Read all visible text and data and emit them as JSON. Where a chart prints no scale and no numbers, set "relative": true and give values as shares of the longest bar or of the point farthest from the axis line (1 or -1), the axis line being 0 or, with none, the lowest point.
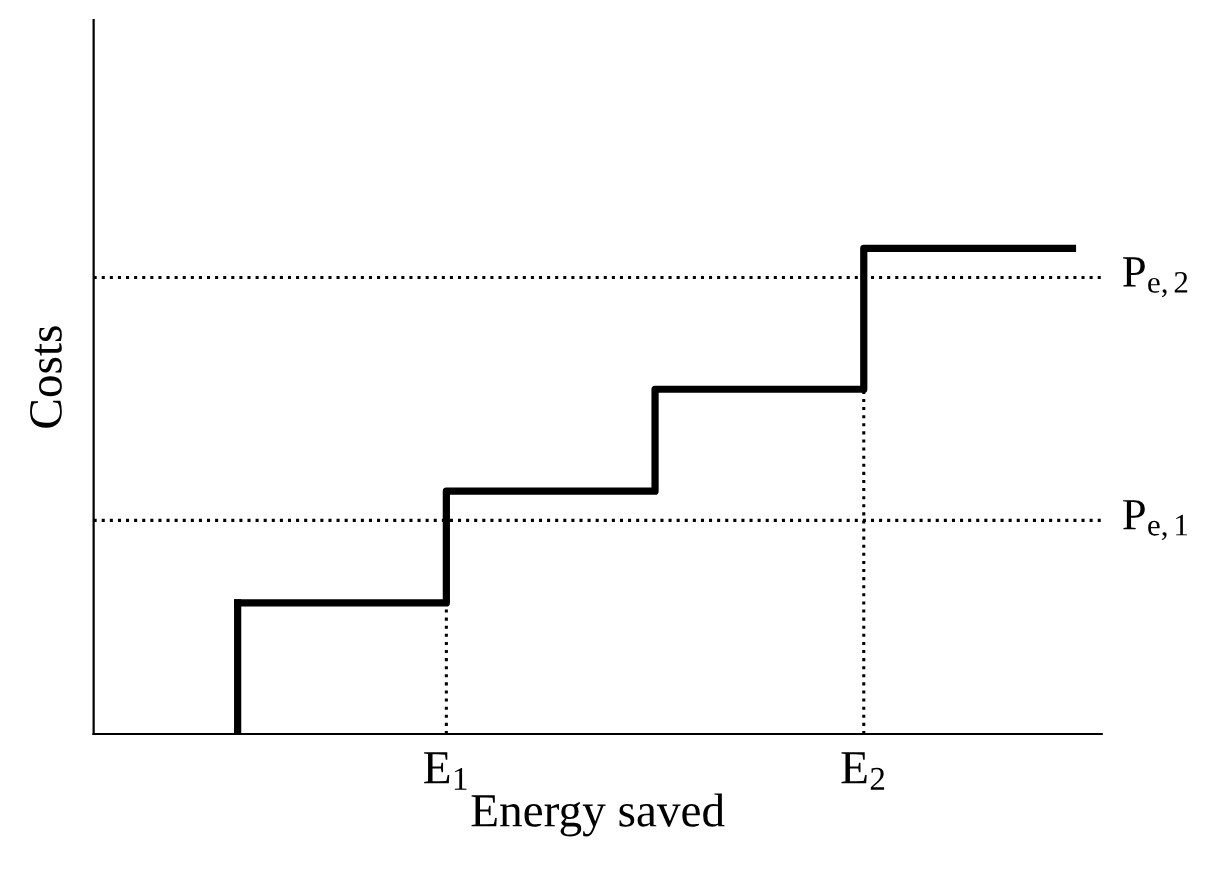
{
  "chart_data": {
    "type": "step",
    "relative": true,
    "xlabel": "Energy saved",
    "ylabel": "Costs",
    "categories": [
      null,
      "E$_{1}$",
      null,
      "E$_{2}$",
      null
    ],
    "series": [
      {
        "color": "#000000",
        "values": [
          0.27,
          0.5,
          0.71,
          1.0,
          1.0
        ]
      }
    ],
    "ref_lines": [
      {
        "axis": "y",
        "value": 0.44,
        "label": "P$_{e,1}$",
        "color": "#000000",
        "line_style": "dotted"
      },
      {
        "axis": "y",
        "value": 0.94,
        "label": "P$_{e,2}$",
        "color": "#000000",
        "line_style": "dotted"
      },
      {
        "axis": "x",
        "value": "E$_{1}$",
        "color": "#000000",
        "line_style": "dotted"
      },
      {
        "axis": "x",
        "value": "E$_{2}$",
        "color": "#000000",
        "line_style": "dotted"
      }
    ],
    "line_style": "solid",
    "marker": "none"
  }
}
